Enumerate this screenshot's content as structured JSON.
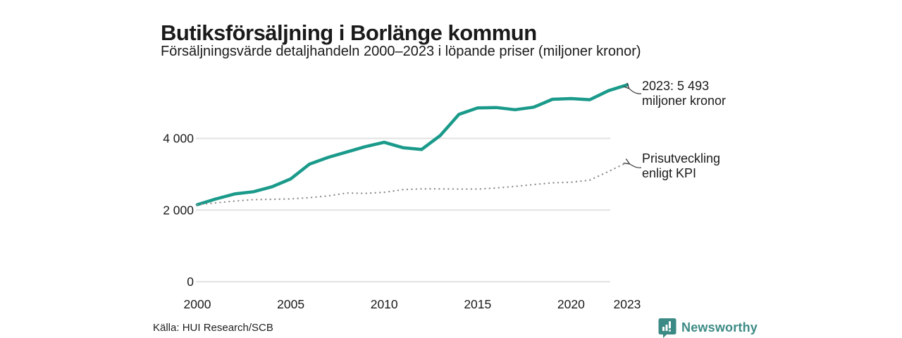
{
  "header": {
    "title": "Butiksförsäljning i Borlänge kommun",
    "subtitle": "Försäljningsvärde detaljhandeln 2000–2023 i löpande priser (miljoner kronor)"
  },
  "chart_data": {
    "type": "line",
    "x": [
      2000,
      2001,
      2002,
      2003,
      2004,
      2005,
      2006,
      2007,
      2008,
      2009,
      2010,
      2011,
      2012,
      2013,
      2014,
      2015,
      2016,
      2017,
      2018,
      2019,
      2020,
      2021,
      2022,
      2023
    ],
    "series": [
      {
        "name": "Försäljningsvärde detaljhandeln",
        "style": "solid",
        "color": "#1a9a8a",
        "values": [
          2150,
          2310,
          2450,
          2510,
          2650,
          2870,
          3280,
          3470,
          3620,
          3770,
          3890,
          3740,
          3690,
          4080,
          4670,
          4850,
          4860,
          4800,
          4870,
          5090,
          5110,
          5080,
          5330,
          5493
        ]
      },
      {
        "name": "Prisutveckling enligt KPI",
        "style": "dotted",
        "color": "#8c8c8c",
        "values": [
          2150,
          2200,
          2250,
          2290,
          2300,
          2310,
          2345,
          2395,
          2475,
          2465,
          2495,
          2570,
          2590,
          2590,
          2585,
          2585,
          2615,
          2660,
          2710,
          2760,
          2775,
          2835,
          3075,
          3330
        ]
      }
    ],
    "title": "Butiksförsäljning i Borlänge kommun",
    "xlabel": "",
    "ylabel": "",
    "ylim": [
      0,
      5700
    ],
    "xlim": [
      2000,
      2023
    ],
    "grid": "horizontal",
    "legend_position": "none",
    "y_ticks": [
      {
        "value": 0,
        "label": "0"
      },
      {
        "value": 2000,
        "label": "2 000"
      },
      {
        "value": 4000,
        "label": "4 000"
      }
    ],
    "x_ticks": [
      {
        "value": 2000,
        "label": "2000"
      },
      {
        "value": 2005,
        "label": "2005"
      },
      {
        "value": 2010,
        "label": "2010"
      },
      {
        "value": 2015,
        "label": "2015"
      },
      {
        "value": 2020,
        "label": "2020"
      },
      {
        "value": 2023,
        "label": "2023"
      }
    ]
  },
  "annotations": {
    "sales_end": {
      "line1": "2023: 5 493",
      "line2": "miljoner kronor"
    },
    "kpi_end": {
      "line1": "Prisutveckling",
      "line2": "enligt KPI"
    }
  },
  "footer": {
    "source": "Källa: HUI Research/SCB",
    "brand": "Newsworthy"
  },
  "colors": {
    "accent": "#1a9a8a",
    "kpi_line": "#8c8c8c",
    "gridline": "#e2e2e2",
    "brand_teal": "#3c8a85",
    "arrow": "#3a3a3a"
  }
}
